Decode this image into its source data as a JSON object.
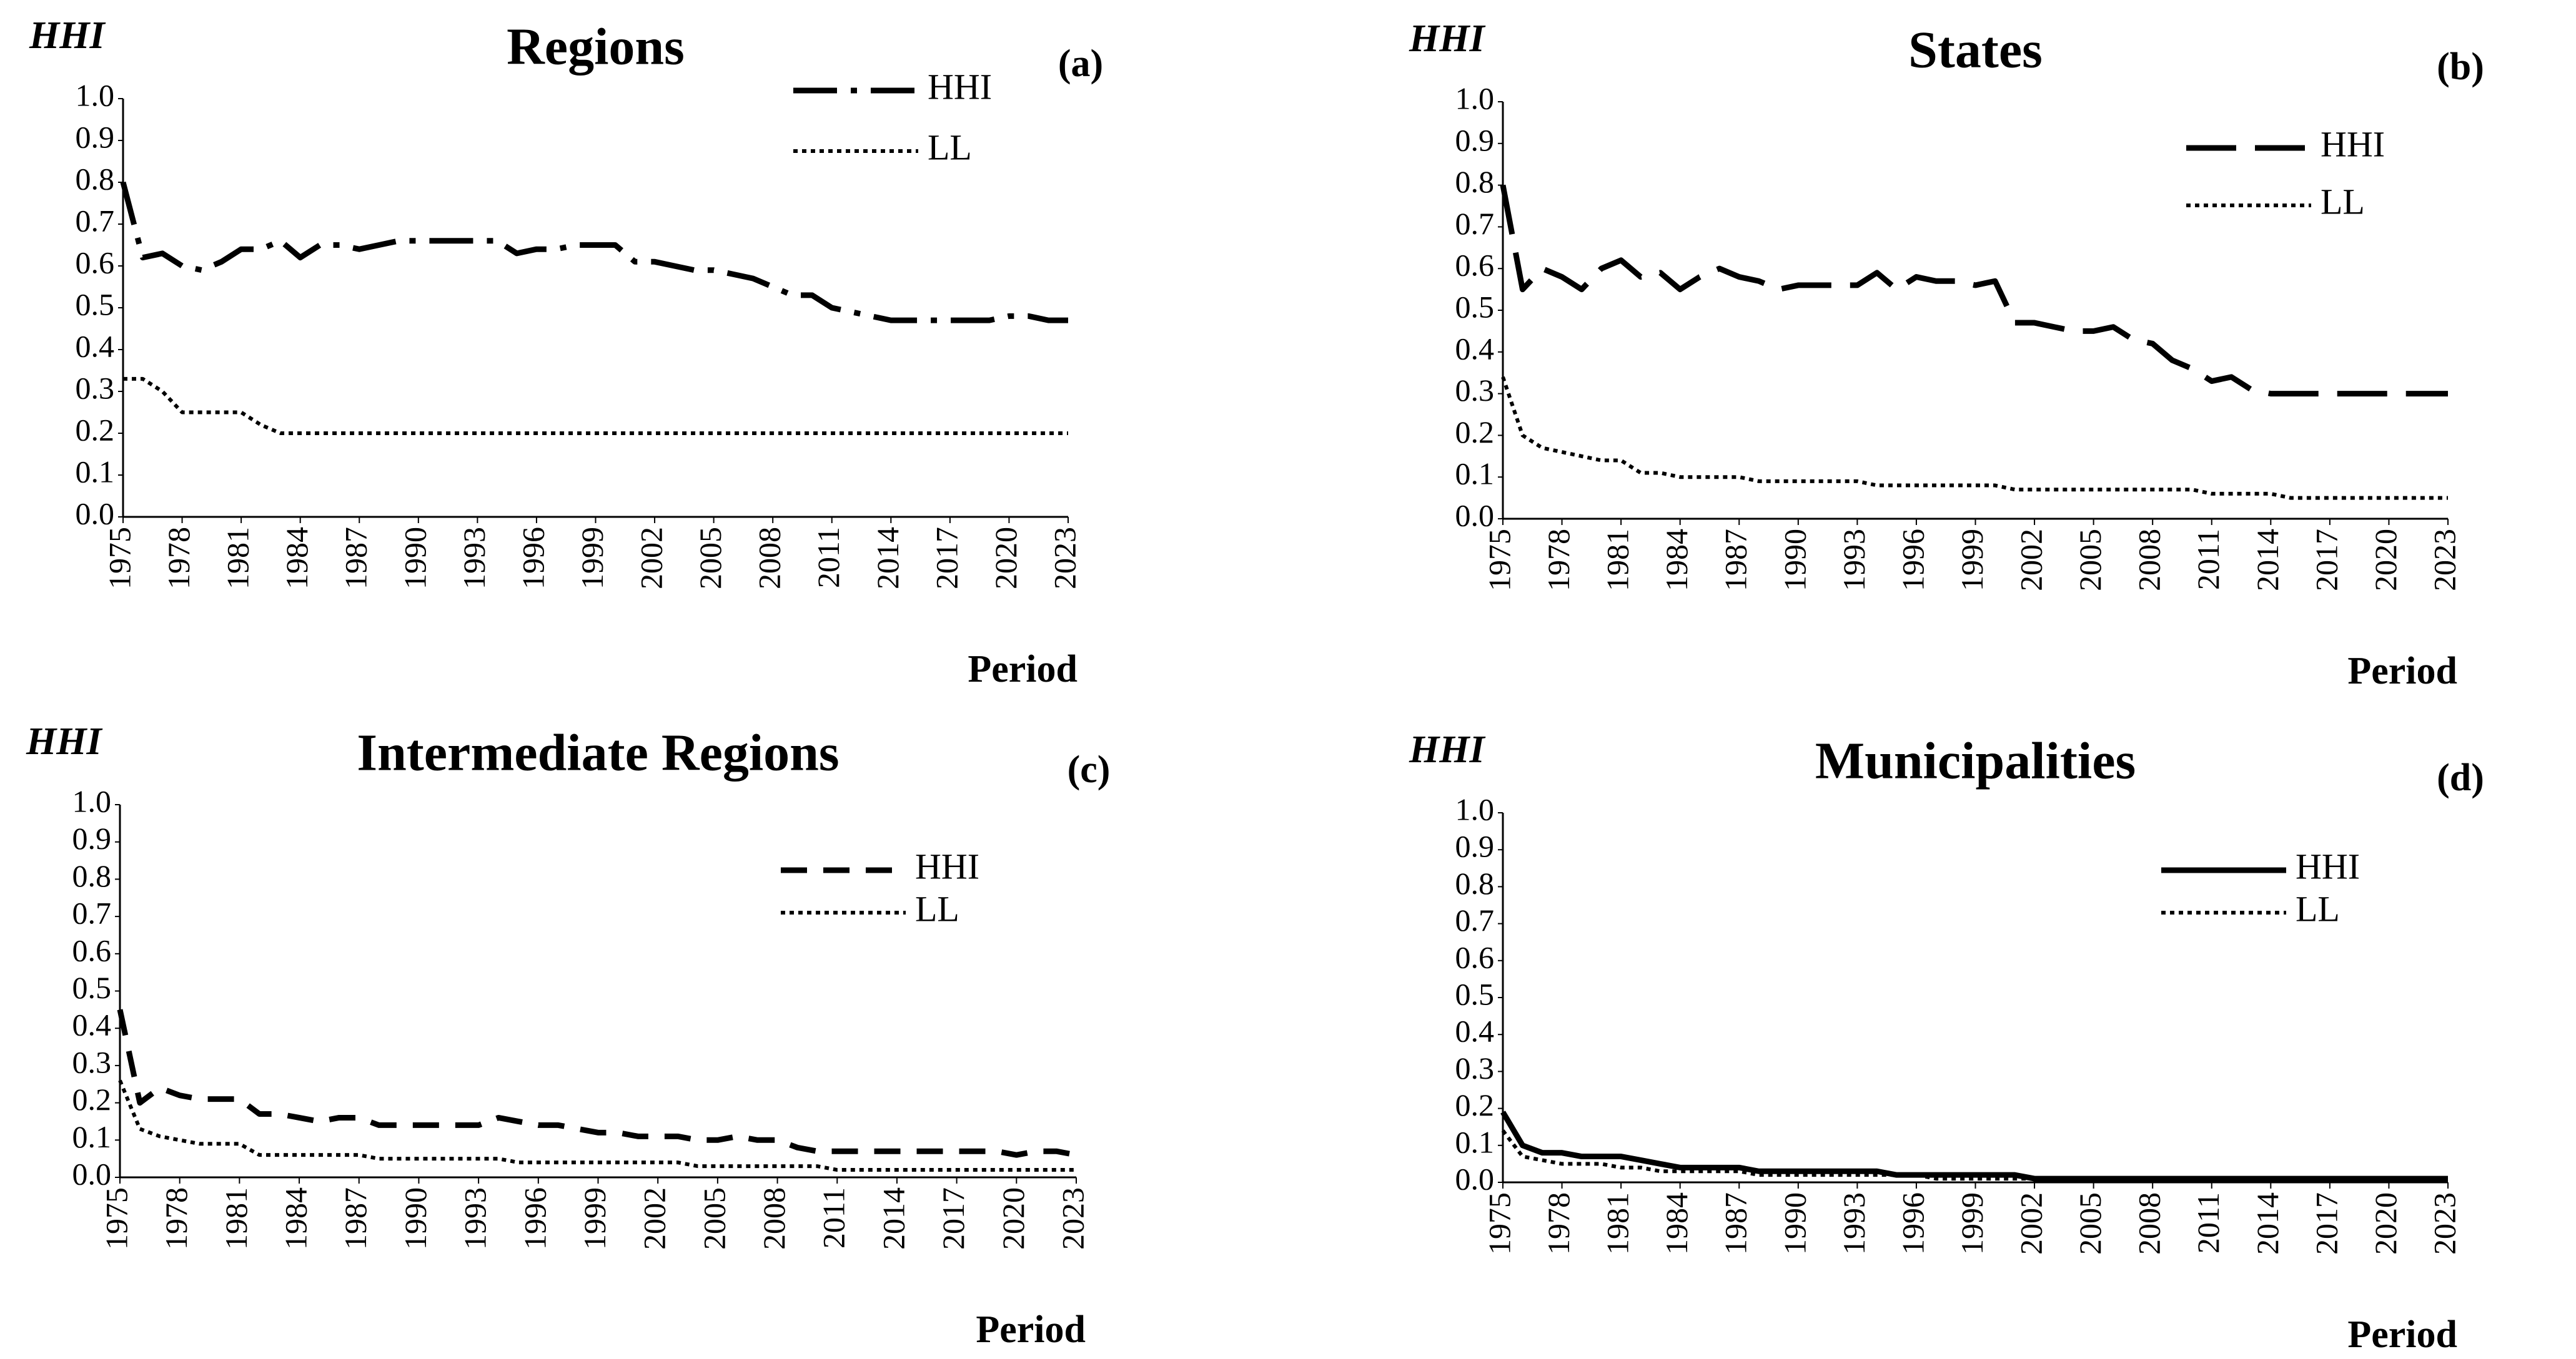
{
  "chart_data": [
    {
      "type": "line",
      "title": "Regions",
      "y_label": "HHI",
      "x_label": "Period",
      "panel_label": "(a)",
      "legend": "upper right",
      "x": [
        1975,
        1976,
        1977,
        1978,
        1979,
        1980,
        1981,
        1982,
        1983,
        1984,
        1985,
        1986,
        1987,
        1988,
        1989,
        1990,
        1991,
        1992,
        1993,
        1994,
        1995,
        1996,
        1997,
        1998,
        1999,
        2000,
        2001,
        2002,
        2003,
        2004,
        2005,
        2006,
        2007,
        2008,
        2009,
        2010,
        2011,
        2012,
        2013,
        2014,
        2015,
        2016,
        2017,
        2018,
        2019,
        2020,
        2021,
        2022,
        2023
      ],
      "xlim": [
        1975,
        2023
      ],
      "xticks": [
        1975,
        1978,
        1981,
        1984,
        1987,
        1990,
        1993,
        1996,
        1999,
        2002,
        2005,
        2008,
        2011,
        2014,
        2017,
        2020,
        2023
      ],
      "ylim": [
        0,
        1
      ],
      "yticks": [
        {
          "value": 0,
          "label": "0.0"
        },
        0.1,
        0.2,
        0.3,
        0.4,
        0.5,
        0.6,
        0.7,
        0.8,
        0.9,
        {
          "value": 1,
          "label": "1.0"
        }
      ],
      "series": [
        {
          "name": "HHI",
          "color": "#000000",
          "dash": "dashdot",
          "values": [
            0.8,
            0.62,
            0.63,
            0.6,
            0.59,
            0.61,
            0.64,
            0.64,
            0.66,
            0.62,
            0.65,
            0.65,
            0.64,
            0.65,
            0.66,
            0.66,
            0.66,
            0.66,
            0.66,
            0.66,
            0.63,
            0.64,
            0.64,
            0.65,
            0.65,
            0.65,
            0.61,
            0.61,
            0.6,
            0.59,
            0.59,
            0.58,
            0.57,
            0.55,
            0.53,
            0.53,
            0.5,
            0.49,
            0.48,
            0.47,
            0.47,
            0.47,
            0.47,
            0.47,
            0.47,
            0.48,
            0.48,
            0.47,
            0.47
          ]
        },
        {
          "name": "LL",
          "color": "#000000",
          "dash": "dot",
          "values": [
            0.33,
            0.33,
            0.3,
            0.25,
            0.25,
            0.25,
            0.25,
            0.22,
            0.2,
            0.2,
            0.2,
            0.2,
            0.2,
            0.2,
            0.2,
            0.2,
            0.2,
            0.2,
            0.2,
            0.2,
            0.2,
            0.2,
            0.2,
            0.2,
            0.2,
            0.2,
            0.2,
            0.2,
            0.2,
            0.2,
            0.2,
            0.2,
            0.2,
            0.2,
            0.2,
            0.2,
            0.2,
            0.2,
            0.2,
            0.2,
            0.2,
            0.2,
            0.2,
            0.2,
            0.2,
            0.2,
            0.2,
            0.2,
            0.2
          ]
        }
      ]
    },
    {
      "type": "line",
      "title": "States",
      "y_label": "HHI",
      "x_label": "Period",
      "panel_label": "(b)",
      "legend": "upper right",
      "x": [
        1975,
        1976,
        1977,
        1978,
        1979,
        1980,
        1981,
        1982,
        1983,
        1984,
        1985,
        1986,
        1987,
        1988,
        1989,
        1990,
        1991,
        1992,
        1993,
        1994,
        1995,
        1996,
        1997,
        1998,
        1999,
        2000,
        2001,
        2002,
        2003,
        2004,
        2005,
        2006,
        2007,
        2008,
        2009,
        2010,
        2011,
        2012,
        2013,
        2014,
        2015,
        2016,
        2017,
        2018,
        2019,
        2020,
        2021,
        2022,
        2023
      ],
      "xlim": [
        1975,
        2023
      ],
      "xticks": [
        1975,
        1978,
        1981,
        1984,
        1987,
        1990,
        1993,
        1996,
        1999,
        2002,
        2005,
        2008,
        2011,
        2014,
        2017,
        2020,
        2023
      ],
      "ylim": [
        0,
        1
      ],
      "yticks": [
        {
          "value": 0,
          "label": "0.0"
        },
        0.1,
        0.2,
        0.3,
        0.4,
        0.5,
        0.6,
        0.7,
        0.8,
        0.9,
        {
          "value": 1,
          "label": "1.0"
        }
      ],
      "series": [
        {
          "name": "HHI",
          "color": "#000000",
          "dash": "longdash",
          "values": [
            0.8,
            0.55,
            0.6,
            0.58,
            0.55,
            0.6,
            0.62,
            0.58,
            0.59,
            0.55,
            0.58,
            0.6,
            0.58,
            0.57,
            0.55,
            0.56,
            0.56,
            0.56,
            0.56,
            0.59,
            0.55,
            0.58,
            0.57,
            0.57,
            0.56,
            0.57,
            0.47,
            0.47,
            0.46,
            0.45,
            0.45,
            0.46,
            0.43,
            0.42,
            0.38,
            0.36,
            0.33,
            0.34,
            0.31,
            0.3,
            0.3,
            0.3,
            0.3,
            0.3,
            0.3,
            0.3,
            0.3,
            0.3,
            0.3
          ]
        },
        {
          "name": "LL",
          "color": "#000000",
          "dash": "dot",
          "values": [
            0.34,
            0.2,
            0.17,
            0.16,
            0.15,
            0.14,
            0.14,
            0.11,
            0.11,
            0.1,
            0.1,
            0.1,
            0.1,
            0.09,
            0.09,
            0.09,
            0.09,
            0.09,
            0.09,
            0.08,
            0.08,
            0.08,
            0.08,
            0.08,
            0.08,
            0.08,
            0.07,
            0.07,
            0.07,
            0.07,
            0.07,
            0.07,
            0.07,
            0.07,
            0.07,
            0.07,
            0.06,
            0.06,
            0.06,
            0.06,
            0.05,
            0.05,
            0.05,
            0.05,
            0.05,
            0.05,
            0.05,
            0.05,
            0.05
          ]
        }
      ]
    },
    {
      "type": "line",
      "title": "Intermediate Regions",
      "y_label": "HHI",
      "x_label": "Period",
      "panel_label": "(c)",
      "legend": "upper right",
      "x": [
        1975,
        1976,
        1977,
        1978,
        1979,
        1980,
        1981,
        1982,
        1983,
        1984,
        1985,
        1986,
        1987,
        1988,
        1989,
        1990,
        1991,
        1992,
        1993,
        1994,
        1995,
        1996,
        1997,
        1998,
        1999,
        2000,
        2001,
        2002,
        2003,
        2004,
        2005,
        2006,
        2007,
        2008,
        2009,
        2010,
        2011,
        2012,
        2013,
        2014,
        2015,
        2016,
        2017,
        2018,
        2019,
        2020,
        2021,
        2022,
        2023
      ],
      "xlim": [
        1975,
        2023
      ],
      "xticks": [
        1975,
        1978,
        1981,
        1984,
        1987,
        1990,
        1993,
        1996,
        1999,
        2002,
        2005,
        2008,
        2011,
        2014,
        2017,
        2020,
        2023
      ],
      "ylim": [
        0,
        1
      ],
      "yticks": [
        {
          "value": 0,
          "label": "0.0"
        },
        0.1,
        0.2,
        0.3,
        0.4,
        0.5,
        0.6,
        0.7,
        0.8,
        0.9,
        {
          "value": 1,
          "label": "1.0"
        }
      ],
      "series": [
        {
          "name": "HHI",
          "color": "#000000",
          "dash": "dash",
          "values": [
            0.45,
            0.2,
            0.24,
            0.22,
            0.21,
            0.21,
            0.21,
            0.17,
            0.17,
            0.16,
            0.15,
            0.16,
            0.16,
            0.14,
            0.14,
            0.14,
            0.14,
            0.14,
            0.14,
            0.16,
            0.15,
            0.14,
            0.14,
            0.13,
            0.12,
            0.12,
            0.11,
            0.11,
            0.11,
            0.1,
            0.1,
            0.11,
            0.1,
            0.1,
            0.08,
            0.07,
            0.07,
            0.07,
            0.07,
            0.07,
            0.07,
            0.07,
            0.07,
            0.07,
            0.07,
            0.06,
            0.07,
            0.07,
            0.06
          ]
        },
        {
          "name": "LL",
          "color": "#000000",
          "dash": "dot",
          "values": [
            0.26,
            0.13,
            0.11,
            0.1,
            0.09,
            0.09,
            0.09,
            0.06,
            0.06,
            0.06,
            0.06,
            0.06,
            0.06,
            0.05,
            0.05,
            0.05,
            0.05,
            0.05,
            0.05,
            0.05,
            0.04,
            0.04,
            0.04,
            0.04,
            0.04,
            0.04,
            0.04,
            0.04,
            0.04,
            0.03,
            0.03,
            0.03,
            0.03,
            0.03,
            0.03,
            0.03,
            0.02,
            0.02,
            0.02,
            0.02,
            0.02,
            0.02,
            0.02,
            0.02,
            0.02,
            0.02,
            0.02,
            0.02,
            0.02
          ]
        }
      ]
    },
    {
      "type": "line",
      "title": "Municipalities",
      "y_label": "HHI",
      "x_label": "Period",
      "panel_label": "(d)",
      "legend": "upper right",
      "x": [
        1975,
        1976,
        1977,
        1978,
        1979,
        1980,
        1981,
        1982,
        1983,
        1984,
        1985,
        1986,
        1987,
        1988,
        1989,
        1990,
        1991,
        1992,
        1993,
        1994,
        1995,
        1996,
        1997,
        1998,
        1999,
        2000,
        2001,
        2002,
        2003,
        2004,
        2005,
        2006,
        2007,
        2008,
        2009,
        2010,
        2011,
        2012,
        2013,
        2014,
        2015,
        2016,
        2017,
        2018,
        2019,
        2020,
        2021,
        2022,
        2023
      ],
      "xlim": [
        1975,
        2023
      ],
      "xticks": [
        1975,
        1978,
        1981,
        1984,
        1987,
        1990,
        1993,
        1996,
        1999,
        2002,
        2005,
        2008,
        2011,
        2014,
        2017,
        2020,
        2023
      ],
      "ylim": [
        0,
        1
      ],
      "yticks": [
        {
          "value": 0,
          "label": "0.0"
        },
        0.1,
        0.2,
        0.3,
        0.4,
        0.5,
        0.6,
        0.7,
        0.8,
        0.9,
        {
          "value": 1,
          "label": "1.0"
        }
      ],
      "series": [
        {
          "name": "HHI",
          "color": "#000000",
          "dash": "solid",
          "values": [
            0.19,
            0.1,
            0.08,
            0.08,
            0.07,
            0.07,
            0.07,
            0.06,
            0.05,
            0.04,
            0.04,
            0.04,
            0.04,
            0.03,
            0.03,
            0.03,
            0.03,
            0.03,
            0.03,
            0.03,
            0.02,
            0.02,
            0.02,
            0.02,
            0.02,
            0.02,
            0.02,
            0.01,
            0.01,
            0.01,
            0.01,
            0.01,
            0.01,
            0.01,
            0.01,
            0.01,
            0.01,
            0.01,
            0.01,
            0.01,
            0.01,
            0.01,
            0.01,
            0.01,
            0.01,
            0.01,
            0.01,
            0.01,
            0.01
          ]
        },
        {
          "name": "LL",
          "color": "#000000",
          "dash": "dot",
          "values": [
            0.14,
            0.07,
            0.06,
            0.05,
            0.05,
            0.05,
            0.04,
            0.04,
            0.03,
            0.03,
            0.03,
            0.03,
            0.03,
            0.02,
            0.02,
            0.02,
            0.02,
            0.02,
            0.02,
            0.02,
            0.02,
            0.02,
            0.01,
            0.01,
            0.01,
            0.01,
            0.01,
            0.01,
            0.01,
            0.01,
            0.01,
            0.01,
            0.01,
            0.01,
            0.01,
            0.01,
            0.01,
            0.01,
            0.01,
            0.01,
            0.01,
            0.01,
            0.01,
            0.01,
            0.01,
            0.01,
            0.01,
            0.01,
            0.01
          ]
        }
      ]
    }
  ]
}
